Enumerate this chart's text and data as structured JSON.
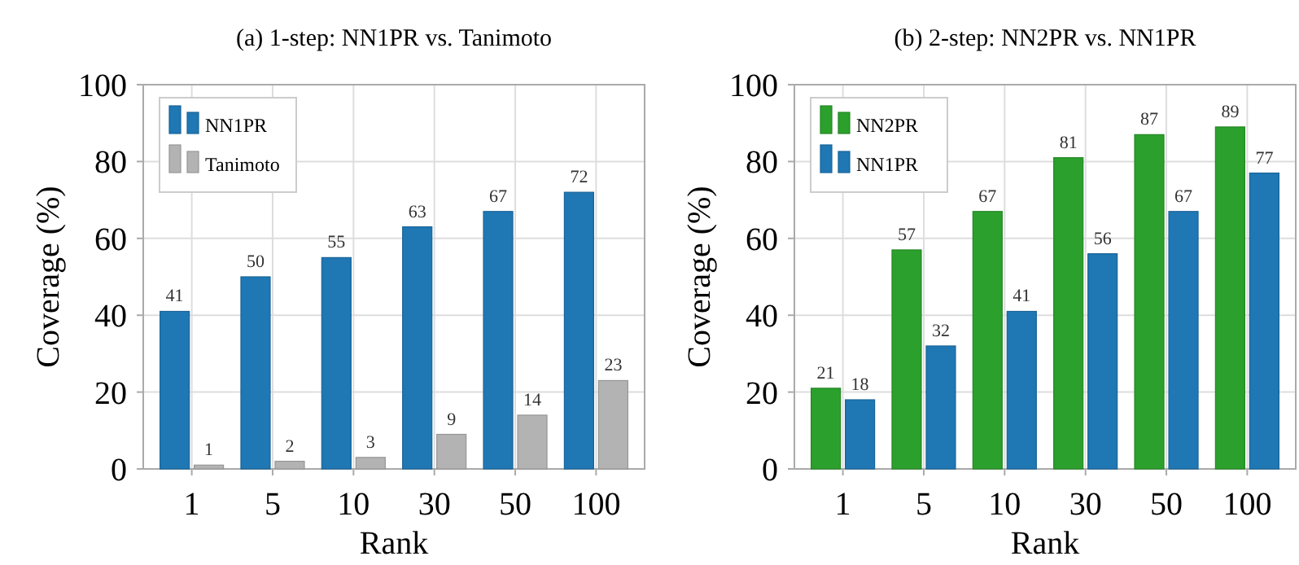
{
  "chart_data": [
    {
      "type": "bar",
      "title": "(a) 1-step: NN1PR vs. Tanimoto",
      "xlabel": "Rank",
      "ylabel": "Coverage (%)",
      "categories": [
        "1",
        "5",
        "10",
        "30",
        "50",
        "100"
      ],
      "series": [
        {
          "name": "NN1PR",
          "color": "#1f77b4",
          "values": [
            41,
            50,
            55,
            63,
            67,
            72
          ]
        },
        {
          "name": "Tanimoto",
          "color": "#b3b3b3",
          "values": [
            1,
            2,
            3,
            9,
            14,
            23
          ]
        }
      ],
      "ylim": [
        0,
        100
      ],
      "yticks": [
        0,
        20,
        40,
        60,
        80,
        100
      ],
      "grid": true,
      "legend": "top left",
      "data_labels": true
    },
    {
      "type": "bar",
      "title": "(b) 2-step: NN2PR vs. NN1PR",
      "xlabel": "Rank",
      "ylabel": "Coverage (%)",
      "categories": [
        "1",
        "5",
        "10",
        "30",
        "50",
        "100"
      ],
      "series": [
        {
          "name": "NN2PR",
          "color": "#2ca02c",
          "values": [
            21,
            57,
            67,
            81,
            87,
            89
          ]
        },
        {
          "name": "NN1PR",
          "color": "#1f77b4",
          "values": [
            18,
            32,
            41,
            56,
            67,
            77
          ]
        }
      ],
      "ylim": [
        0,
        100
      ],
      "yticks": [
        0,
        20,
        40,
        60,
        80,
        100
      ],
      "grid": true,
      "legend": "top left",
      "data_labels": true
    }
  ]
}
